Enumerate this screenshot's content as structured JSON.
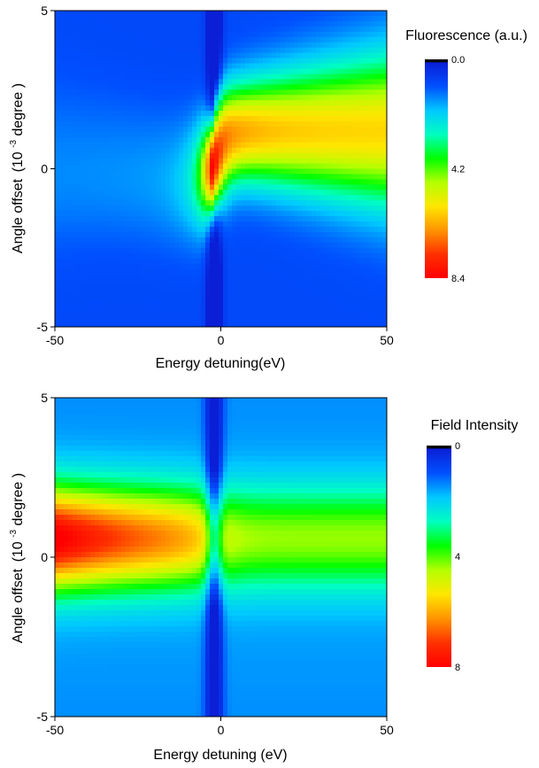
{
  "chart_data": [
    {
      "type": "heatmap",
      "title": "",
      "xlabel": "Energy detuning(eV)",
      "ylabel_prefix": "Angle offset",
      "ylabel_base": "(10",
      "ylabel_exp": "-3",
      "ylabel_suffix": "degree )",
      "xlim": [
        -50,
        50
      ],
      "ylim": [
        -5,
        5
      ],
      "x_ticks": [
        {
          "value": -50,
          "label": "-50"
        },
        {
          "value": 0,
          "label": "0"
        },
        {
          "value": 50,
          "label": "50"
        }
      ],
      "y_ticks": [
        {
          "value": -5,
          "label": "-5"
        },
        {
          "value": 0,
          "label": "0"
        },
        {
          "value": 5,
          "label": "5"
        }
      ],
      "colorbar": {
        "title": "Fluorescence (a.u.)",
        "min": 0.0,
        "max": 8.4,
        "ticks": [
          {
            "value": 0.0,
            "label": "0.0"
          },
          {
            "value": 4.2,
            "label": "4.2"
          },
          {
            "value": 8.4,
            "label": "8.4"
          }
        ],
        "colors": [
          "#000000",
          "#0a1fd6",
          "#0050ff",
          "#00c8ff",
          "#00ffc0",
          "#00ff00",
          "#b4ff00",
          "#ffe600",
          "#ff9400",
          "#ff3000",
          "#ff0000"
        ]
      },
      "features": {
        "description_values": "approximate peak value 8.4 near x=2, y=0.8; resonance ridge along x≈-2 from y=-5 to y=5",
        "peak": {
          "x": 2,
          "y": 0.8,
          "value": 8.4
        }
      }
    },
    {
      "type": "heatmap",
      "title": "",
      "xlabel": "Energy detuning (eV)",
      "ylabel_prefix": "Angle offset",
      "ylabel_base": "(10",
      "ylabel_exp": "-3",
      "ylabel_suffix": "degree )",
      "xlim": [
        -50,
        50
      ],
      "ylim": [
        -5,
        5
      ],
      "x_ticks": [
        {
          "value": -50,
          "label": "-50"
        },
        {
          "value": 0,
          "label": "0"
        },
        {
          "value": 50,
          "label": "50"
        }
      ],
      "y_ticks": [
        {
          "value": -5,
          "label": "-5"
        },
        {
          "value": 0,
          "label": "0"
        },
        {
          "value": 5,
          "label": "5"
        }
      ],
      "colorbar": {
        "title": "Field Intensity",
        "min": 0,
        "max": 8,
        "ticks": [
          {
            "value": 0,
            "label": "0"
          },
          {
            "value": 4,
            "label": "4"
          },
          {
            "value": 8,
            "label": "8"
          }
        ],
        "colors": [
          "#000000",
          "#0a1fd6",
          "#0050ff",
          "#00c8ff",
          "#00ffc0",
          "#00ff00",
          "#b4ff00",
          "#ffe600",
          "#ff9400",
          "#ff3000",
          "#ff0000"
        ]
      },
      "features": {
        "peak": {
          "x": -45,
          "y": 0.2,
          "value": 8
        },
        "dip_line_x": -2
      }
    }
  ]
}
